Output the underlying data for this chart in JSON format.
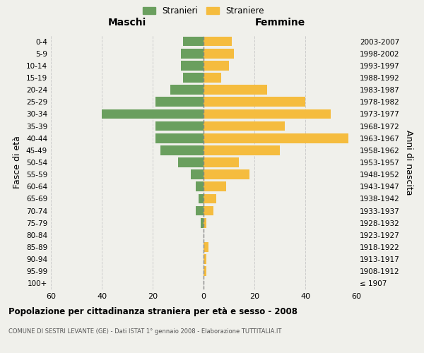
{
  "age_groups": [
    "100+",
    "95-99",
    "90-94",
    "85-89",
    "80-84",
    "75-79",
    "70-74",
    "65-69",
    "60-64",
    "55-59",
    "50-54",
    "45-49",
    "40-44",
    "35-39",
    "30-34",
    "25-29",
    "20-24",
    "15-19",
    "10-14",
    "5-9",
    "0-4"
  ],
  "birth_years": [
    "≤ 1907",
    "1908-1912",
    "1913-1917",
    "1918-1922",
    "1923-1927",
    "1928-1932",
    "1933-1937",
    "1938-1942",
    "1943-1947",
    "1948-1952",
    "1953-1957",
    "1958-1962",
    "1963-1967",
    "1968-1972",
    "1973-1977",
    "1978-1982",
    "1983-1987",
    "1988-1992",
    "1993-1997",
    "1998-2002",
    "2003-2007"
  ],
  "maschi": [
    0,
    0,
    0,
    0,
    0,
    1,
    3,
    2,
    3,
    5,
    10,
    17,
    19,
    19,
    40,
    19,
    13,
    8,
    9,
    9,
    8
  ],
  "femmine": [
    0,
    1,
    1,
    2,
    0,
    1,
    4,
    5,
    9,
    18,
    14,
    30,
    57,
    32,
    50,
    40,
    25,
    7,
    10,
    12,
    11
  ],
  "maschi_color": "#6a9f5e",
  "femmine_color": "#f5bc3e",
  "background_color": "#f0f0eb",
  "grid_color": "#cccccc",
  "center_line_color": "#888888",
  "title": "Popolazione per cittadinanza straniera per età e sesso - 2008",
  "subtitle": "COMUNE DI SESTRI LEVANTE (GE) - Dati ISTAT 1° gennaio 2008 - Elaborazione TUTTITALIA.IT",
  "left_header": "Maschi",
  "right_header": "Femmine",
  "left_ylabel": "Fasce di età",
  "right_ylabel": "Anni di nascita",
  "legend_stranieri": "Stranieri",
  "legend_straniere": "Straniere",
  "xlim": 60
}
